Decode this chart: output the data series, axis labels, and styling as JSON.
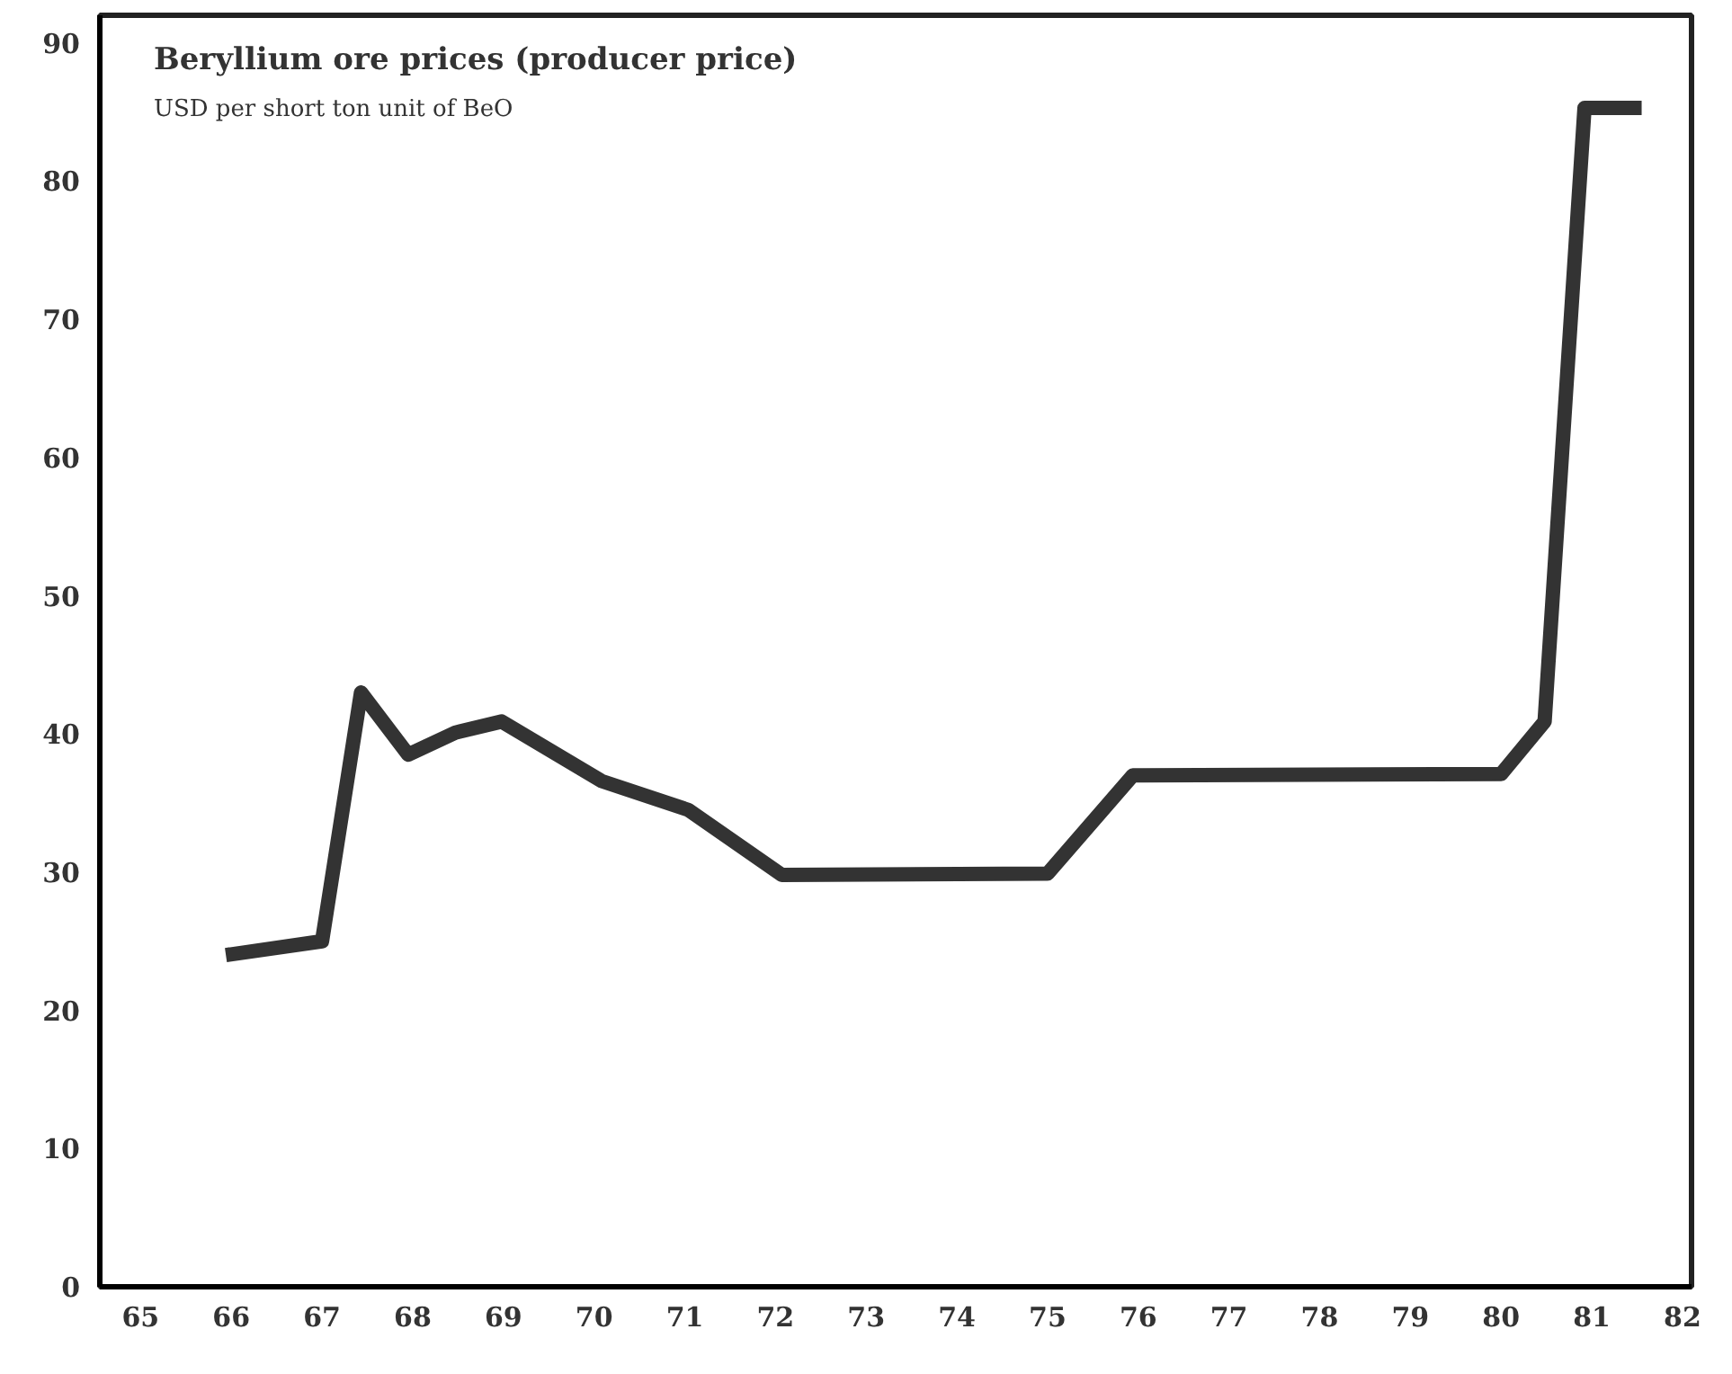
{
  "chart_data": {
    "type": "line",
    "title": "Beryllium ore prices (producer price)",
    "subtitle": "USD per short ton unit of BeO",
    "x": [
      65.94,
      67.0,
      67.43,
      67.95,
      68.47,
      68.98,
      70.08,
      71.04,
      72.07,
      75.0,
      75.94,
      80.0,
      80.48,
      80.92,
      81.55
    ],
    "series": [
      {
        "color": "#333333",
        "values": [
          24.0,
          25.0,
          43.0,
          38.5,
          40.1,
          40.9,
          36.6,
          34.5,
          29.8,
          29.9,
          37.0,
          37.1,
          40.9,
          85.3,
          85.3
        ]
      }
    ],
    "xlim": [
      64.55,
      82.1
    ],
    "ylim": [
      0,
      92
    ],
    "xticks": [
      65,
      66,
      67,
      68,
      69,
      70,
      71,
      72,
      73,
      74,
      75,
      76,
      77,
      78,
      79,
      80,
      81,
      82
    ],
    "yticks": [
      0,
      10,
      20,
      30,
      40,
      50,
      60,
      70,
      80,
      90
    ],
    "grid": false,
    "marker": "none",
    "line_style": "solid"
  }
}
